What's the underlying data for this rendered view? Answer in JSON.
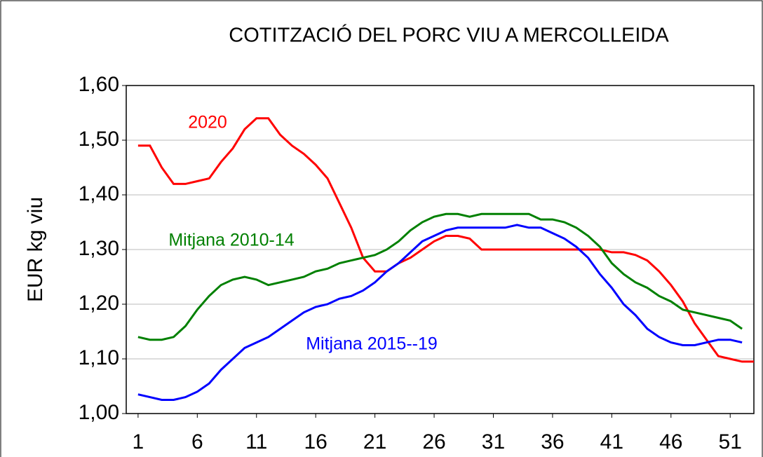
{
  "chart_data": {
    "type": "line",
    "title": "COTITZACIÓ DEL PORC VIU A MERCOLLEIDA",
    "y_label": "EUR kg viu",
    "x": [
      1,
      2,
      3,
      4,
      5,
      6,
      7,
      8,
      9,
      10,
      11,
      12,
      13,
      14,
      15,
      16,
      17,
      18,
      19,
      20,
      21,
      22,
      23,
      24,
      25,
      26,
      27,
      28,
      29,
      30,
      31,
      32,
      33,
      34,
      35,
      36,
      37,
      38,
      39,
      40,
      41,
      42,
      43,
      44,
      45,
      46,
      47,
      48,
      49,
      50,
      51,
      52,
      53
    ],
    "series": [
      {
        "name": "2020",
        "color": "#ff0000",
        "values": [
          1.49,
          1.49,
          1.45,
          1.42,
          1.42,
          1.425,
          1.43,
          1.46,
          1.485,
          1.52,
          1.54,
          1.54,
          1.51,
          1.49,
          1.475,
          1.455,
          1.43,
          1.385,
          1.34,
          1.285,
          1.26,
          1.26,
          1.275,
          1.285,
          1.3,
          1.315,
          1.325,
          1.325,
          1.32,
          1.3,
          1.3,
          1.3,
          1.3,
          1.3,
          1.3,
          1.3,
          1.3,
          1.3,
          1.3,
          1.3,
          1.295,
          1.295,
          1.29,
          1.28,
          1.26,
          1.235,
          1.205,
          1.165,
          1.135,
          1.105,
          1.1,
          1.095,
          1.095
        ]
      },
      {
        "name": "Mitjana 2010-14",
        "color": "#008000",
        "values": [
          1.14,
          1.135,
          1.135,
          1.14,
          1.16,
          1.19,
          1.215,
          1.235,
          1.245,
          1.25,
          1.245,
          1.235,
          1.24,
          1.245,
          1.25,
          1.26,
          1.265,
          1.275,
          1.28,
          1.285,
          1.29,
          1.3,
          1.315,
          1.335,
          1.35,
          1.36,
          1.365,
          1.365,
          1.36,
          1.365,
          1.365,
          1.365,
          1.365,
          1.365,
          1.355,
          1.355,
          1.35,
          1.34,
          1.325,
          1.305,
          1.275,
          1.255,
          1.24,
          1.23,
          1.215,
          1.205,
          1.19,
          1.185,
          1.18,
          1.175,
          1.17,
          1.155,
          null
        ]
      },
      {
        "name": "Mitjana 2015--19",
        "color": "#0000ff",
        "values": [
          1.035,
          1.03,
          1.025,
          1.025,
          1.03,
          1.04,
          1.055,
          1.08,
          1.1,
          1.12,
          1.13,
          1.14,
          1.155,
          1.17,
          1.185,
          1.195,
          1.2,
          1.21,
          1.215,
          1.225,
          1.24,
          1.26,
          1.275,
          1.295,
          1.315,
          1.325,
          1.335,
          1.34,
          1.34,
          1.34,
          1.34,
          1.34,
          1.345,
          1.34,
          1.34,
          1.33,
          1.32,
          1.305,
          1.285,
          1.255,
          1.23,
          1.2,
          1.18,
          1.155,
          1.14,
          1.13,
          1.125,
          1.125,
          1.13,
          1.135,
          1.135,
          1.13,
          null
        ]
      }
    ],
    "xlim": [
      0,
      53
    ],
    "xticks": [
      1,
      6,
      11,
      16,
      21,
      26,
      31,
      36,
      41,
      46,
      51
    ],
    "ylim": [
      1.0,
      1.6
    ],
    "yticks": [
      {
        "value": 1.0,
        "label": "1,00"
      },
      {
        "value": 1.1,
        "label": "1,10"
      },
      {
        "value": 1.2,
        "label": "1,20"
      },
      {
        "value": 1.3,
        "label": "1,30"
      },
      {
        "value": 1.4,
        "label": "1,40"
      },
      {
        "value": 1.5,
        "label": "1,50"
      },
      {
        "value": 1.6,
        "label": "1,60"
      }
    ],
    "grid": true
  }
}
